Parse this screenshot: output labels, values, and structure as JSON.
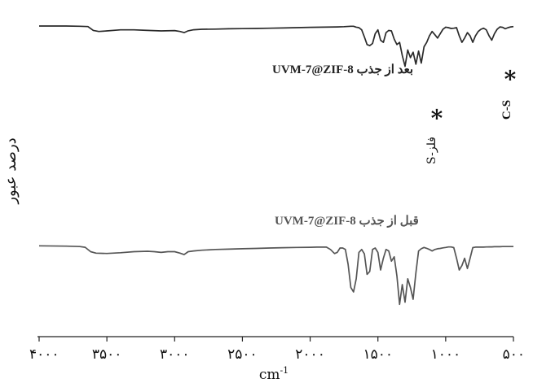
{
  "chart_data": {
    "type": "line",
    "title": "",
    "xlabel": "cm",
    "xlabel_superscript": "-1",
    "ylabel": "درصد عبور",
    "x_reversed": true,
    "xlim": [
      4000,
      500
    ],
    "x_ticks": [
      4000,
      3500,
      3000,
      2500,
      2000,
      1500,
      1000,
      500
    ],
    "x_tick_labels": [
      "۴۰۰۰",
      "۳۵۰۰",
      "۳۰۰۰",
      "۲۵۰۰",
      "۲۰۰۰",
      "۱۵۰۰",
      "۱۰۰۰",
      "۵۰۰"
    ],
    "y_ticks_shown": false,
    "ylim": [
      0,
      100
    ],
    "grid": false,
    "series": [
      {
        "name": "UVM-7@ZIF-8 بعد از جذب",
        "color": "#2a2a2a",
        "x": [
          4000,
          3800,
          3700,
          3640,
          3600,
          3560,
          3500,
          3400,
          3300,
          3200,
          3100,
          3000,
          2960,
          2930,
          2900,
          2860,
          2800,
          2700,
          2600,
          2500,
          2400,
          2300,
          2200,
          2100,
          2000,
          1950,
          1900,
          1800,
          1750,
          1700,
          1680,
          1660,
          1640,
          1620,
          1600,
          1580,
          1560,
          1540,
          1520,
          1500,
          1480,
          1460,
          1440,
          1420,
          1400,
          1380,
          1360,
          1340,
          1320,
          1300,
          1280,
          1260,
          1240,
          1220,
          1200,
          1180,
          1160,
          1140,
          1120,
          1100,
          1080,
          1060,
          1040,
          1020,
          1000,
          980,
          960,
          940,
          920,
          900,
          880,
          860,
          840,
          820,
          800,
          780,
          760,
          740,
          720,
          700,
          680,
          660,
          640,
          620,
          600,
          580,
          560,
          540,
          520,
          500
        ],
        "y": [
          97,
          97,
          96.8,
          96.5,
          93,
          92,
          92.5,
          93.5,
          93.5,
          93,
          92.5,
          92.8,
          92,
          91,
          92.6,
          93.6,
          94,
          94.2,
          94.5,
          94.6,
          94.8,
          95,
          95.2,
          95.5,
          95.8,
          95.9,
          96,
          96.2,
          96.4,
          96.8,
          96.8,
          96,
          95.5,
          93.5,
          87,
          80,
          79,
          81,
          90,
          93.5,
          84,
          82,
          91,
          93,
          92.5,
          85,
          80,
          82,
          70,
          60,
          75,
          68,
          73,
          62,
          74,
          63,
          78,
          82,
          88,
          92,
          89,
          86,
          90,
          94,
          96,
          95.5,
          94.8,
          95,
          95.5,
          88,
          82,
          86,
          91,
          88,
          82,
          88,
          92,
          94,
          95,
          93.5,
          88,
          84,
          90,
          94,
          96.2,
          95.8,
          94.5,
          95.5,
          96.2,
          96.5
        ]
      },
      {
        "name": "UVM-7@ZIF-8 قبل از جذب",
        "color": "#555555",
        "x": [
          4000,
          3800,
          3700,
          3660,
          3620,
          3580,
          3500,
          3400,
          3300,
          3200,
          3150,
          3100,
          3050,
          3000,
          2960,
          2930,
          2900,
          2860,
          2800,
          2700,
          2600,
          2500,
          2400,
          2300,
          2200,
          2100,
          2000,
          1950,
          1900,
          1880,
          1850,
          1820,
          1800,
          1780,
          1760,
          1740,
          1720,
          1700,
          1680,
          1660,
          1640,
          1620,
          1600,
          1580,
          1560,
          1540,
          1520,
          1500,
          1480,
          1460,
          1440,
          1420,
          1400,
          1380,
          1360,
          1340,
          1320,
          1300,
          1280,
          1260,
          1240,
          1220,
          1200,
          1180,
          1160,
          1140,
          1120,
          1100,
          1080,
          1060,
          1040,
          1020,
          1000,
          980,
          960,
          940,
          920,
          900,
          880,
          860,
          840,
          820,
          800,
          780,
          760,
          740,
          720,
          700,
          680,
          660,
          640,
          620,
          600,
          580,
          560,
          540,
          520,
          500
        ],
        "y": [
          46.5,
          46.3,
          46,
          45.5,
          42.5,
          41.5,
          41.3,
          41.8,
          42.5,
          42.8,
          42.5,
          42,
          42.5,
          42.5,
          41.5,
          40.5,
          42.5,
          43,
          43.5,
          44,
          44.2,
          44.5,
          44.7,
          45,
          45.2,
          45.4,
          45.5,
          45.6,
          45.6,
          45.6,
          44,
          41.2,
          42,
          45,
          45,
          44,
          34,
          18,
          15,
          24,
          42,
          44,
          41,
          27,
          29,
          44,
          45,
          42,
          30,
          38,
          44,
          43,
          36,
          39,
          26,
          6.5,
          20,
          8,
          24,
          18,
          10,
          28,
          43,
          44.5,
          45.4,
          44.8,
          44,
          43,
          44,
          44.5,
          44.7,
          45.1,
          45.4,
          45.7,
          45.7,
          45.3,
          38,
          30,
          33,
          38,
          31,
          38,
          45.3,
          45.6,
          45.6,
          45.6,
          45.6,
          45.7,
          45.8,
          45.8,
          45.9,
          45.9,
          45.9,
          46,
          46,
          46,
          46,
          46
        ]
      }
    ],
    "annotations": [
      {
        "text": "UVM-7@ZIF-8 بعد از جذب",
        "kind": "series-label"
      },
      {
        "text": "UVM-7@ZIF-8 قبل از جذب",
        "kind": "series-label"
      },
      {
        "text": "*",
        "kind": "marker",
        "x": 955
      },
      {
        "text": "*",
        "kind": "marker",
        "x": 590
      },
      {
        "text": "S-فلز",
        "kind": "band-label",
        "x": 1045
      },
      {
        "text": "C-S",
        "kind": "band-label",
        "x": 660
      }
    ]
  }
}
